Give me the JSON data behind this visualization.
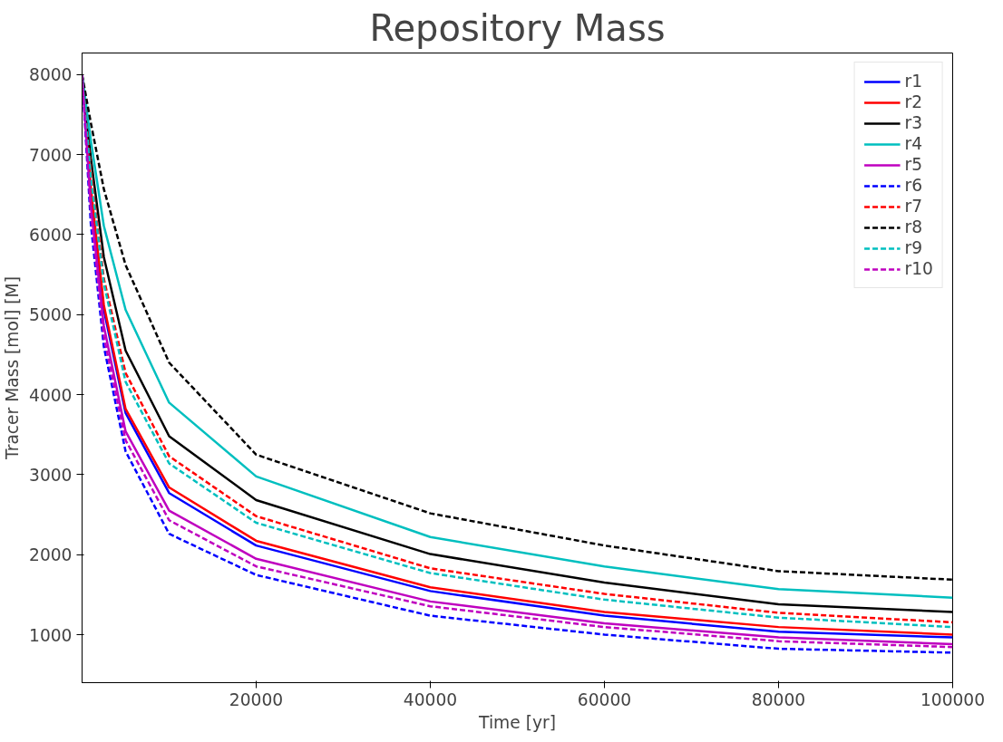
{
  "chart_data": {
    "type": "line",
    "title": "Repository Mass",
    "xlabel": "Time [yr]",
    "ylabel": "Tracer Mass [mol] [M]",
    "x": [
      0,
      1000,
      2500,
      5000,
      10000,
      20000,
      40000,
      60000,
      80000,
      100000
    ],
    "xlim": [
      0,
      100000
    ],
    "xticks": [
      20000,
      40000,
      60000,
      80000,
      100000
    ],
    "ylim": [
      400,
      8270
    ],
    "yticks": [
      1000,
      2000,
      3000,
      4000,
      5000,
      6000,
      7000,
      8000
    ],
    "grid": false,
    "legend": "top right",
    "series": [
      {
        "name": "r1",
        "color": "#0000ff",
        "line_style": "solid",
        "values": [
          8000,
          6510,
          5060,
          3770,
          2770,
          2114,
          1545,
          1237,
          1036,
          965
        ]
      },
      {
        "name": "r2",
        "color": "#ff0000",
        "line_style": "solid",
        "values": [
          8000,
          6590,
          5120,
          3820,
          2840,
          2173,
          1592,
          1284,
          1095,
          1000
        ]
      },
      {
        "name": "r3",
        "color": "#000000",
        "line_style": "solid",
        "values": [
          8000,
          6960,
          5720,
          4550,
          3480,
          2682,
          2007,
          1652,
          1379,
          1284
        ]
      },
      {
        "name": "r4",
        "color": "#00bfbf",
        "line_style": "solid",
        "values": [
          8000,
          7180,
          6110,
          5060,
          3900,
          2978,
          2220,
          1853,
          1569,
          1462
        ]
      },
      {
        "name": "r5",
        "color": "#bf00bf",
        "line_style": "solid",
        "values": [
          8000,
          6360,
          4860,
          3540,
          2550,
          1948,
          1415,
          1142,
          965,
          880
        ]
      },
      {
        "name": "r6",
        "color": "#0000ff",
        "line_style": "dashed",
        "values": [
          8000,
          6140,
          4600,
          3290,
          2260,
          1746,
          1237,
          1000,
          824,
          775
        ]
      },
      {
        "name": "r7",
        "color": "#ff0000",
        "line_style": "dashed",
        "values": [
          8000,
          6810,
          5450,
          4270,
          3230,
          2481,
          1829,
          1509,
          1273,
          1154
        ]
      },
      {
        "name": "r8",
        "color": "#000000",
        "line_style": "dashed",
        "values": [
          8000,
          7400,
          6570,
          5620,
          4400,
          3250,
          2516,
          2114,
          1794,
          1687
        ]
      },
      {
        "name": "r9",
        "color": "#00bfbf",
        "line_style": "dashed",
        "values": [
          8000,
          6730,
          5390,
          4160,
          3140,
          2398,
          1770,
          1438,
          1213,
          1095
        ]
      },
      {
        "name": "r10",
        "color": "#bf00bf",
        "line_style": "dashed",
        "values": [
          8000,
          6290,
          4730,
          3430,
          2430,
          1853,
          1355,
          1095,
          918,
          845
        ]
      }
    ]
  }
}
